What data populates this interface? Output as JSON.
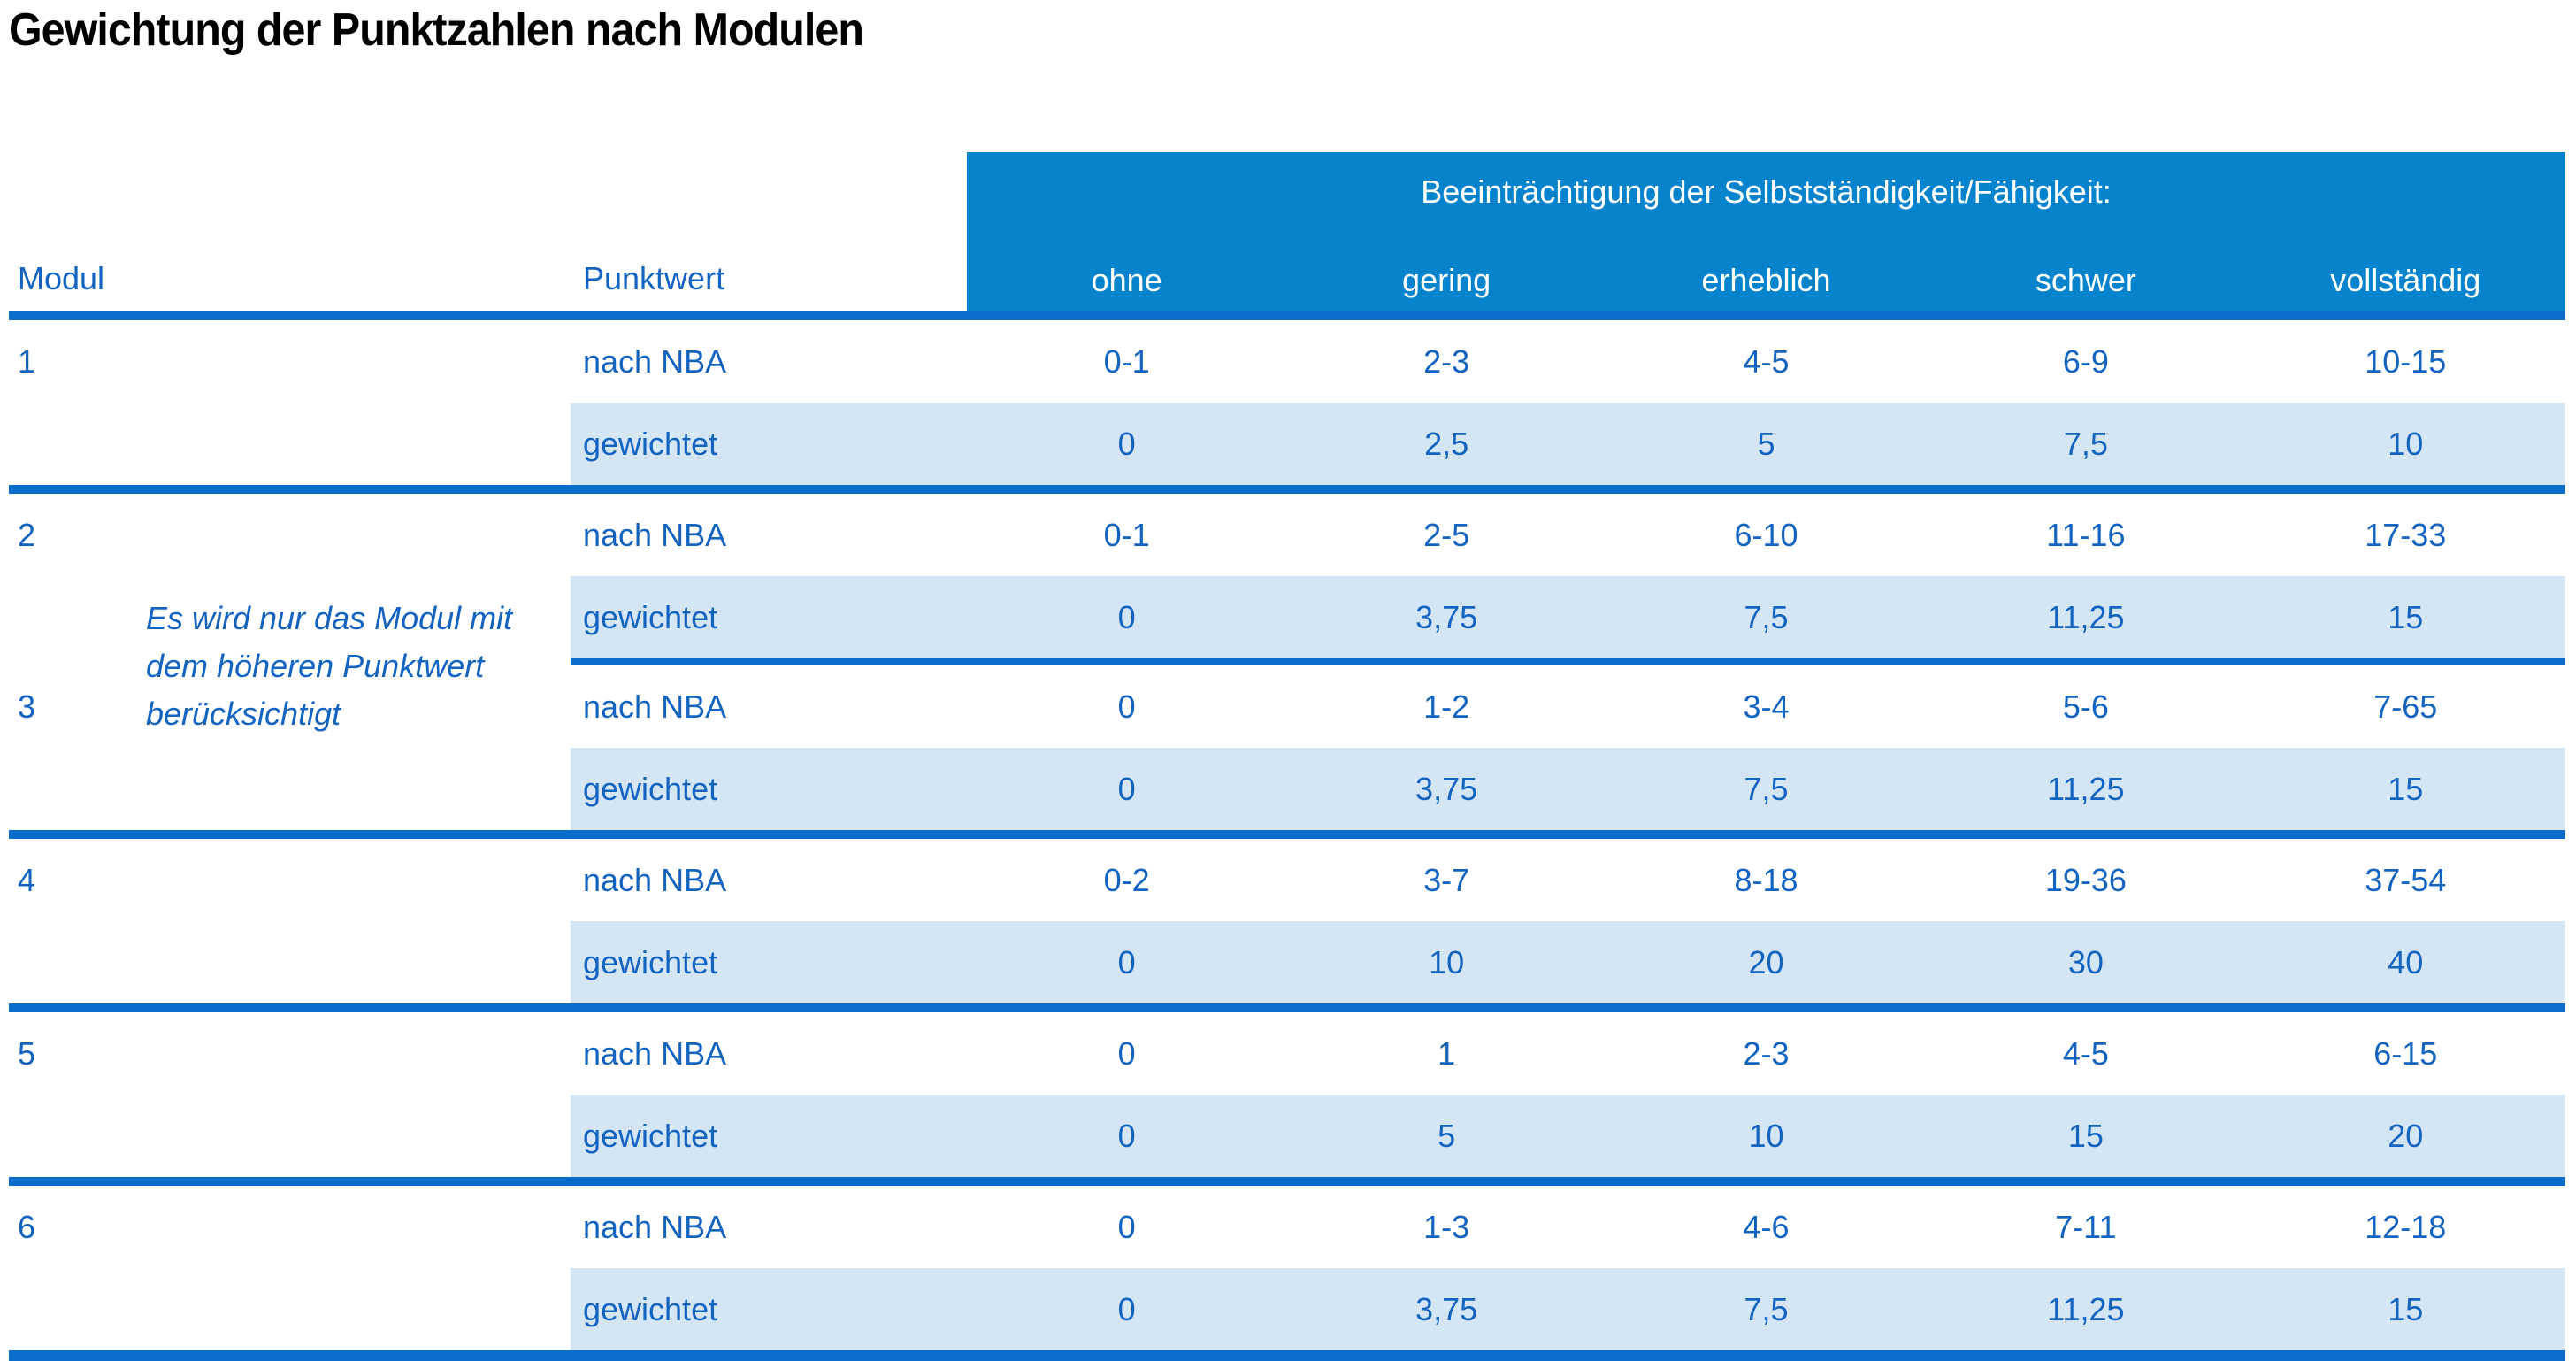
{
  "title": "Gewichtung der Punktzahlen nach Modulen",
  "labels": {
    "modul": "Modul",
    "punktwert": "Punktwert",
    "nba": "nach NBA",
    "weighted": "gewichtet"
  },
  "header": {
    "group": "Beeinträchtigung der Selbstständigkeit/Fähigkeit:",
    "levels": [
      "ohne",
      "gering",
      "erheblich",
      "schwer",
      "vollständig"
    ]
  },
  "note": "Es wird nur das Modul mit dem höheren Punktwert berücksichtigt",
  "modules": [
    {
      "id": "1",
      "nba": [
        "0-1",
        "2-3",
        "4-5",
        "6-9",
        "10-15"
      ],
      "weighted": [
        "0",
        "2,5",
        "5",
        "7,5",
        "10"
      ]
    },
    {
      "id": "2",
      "nba": [
        "0-1",
        "2-5",
        "6-10",
        "11-16",
        "17-33"
      ],
      "weighted": [
        "0",
        "3,75",
        "7,5",
        "11,25",
        "15"
      ]
    },
    {
      "id": "3",
      "nba": [
        "0",
        "1-2",
        "3-4",
        "5-6",
        "7-65"
      ],
      "weighted": [
        "0",
        "3,75",
        "7,5",
        "11,25",
        "15"
      ]
    },
    {
      "id": "4",
      "nba": [
        "0-2",
        "3-7",
        "8-18",
        "19-36",
        "37-54"
      ],
      "weighted": [
        "0",
        "10",
        "20",
        "30",
        "40"
      ]
    },
    {
      "id": "5",
      "nba": [
        "0",
        "1",
        "2-3",
        "4-5",
        "6-15"
      ],
      "weighted": [
        "0",
        "5",
        "10",
        "15",
        "20"
      ]
    },
    {
      "id": "6",
      "nba": [
        "0",
        "1-3",
        "4-6",
        "7-11",
        "12-18"
      ],
      "weighted": [
        "0",
        "3,75",
        "7,5",
        "11,25",
        "15"
      ]
    }
  ],
  "colors": {
    "header_bg": "#0583cd",
    "divider": "#0a6dc9",
    "text_blue": "#1363c0",
    "row_alt_bg": "#d4e5f4",
    "header_text": "#ffffff",
    "title_text": "#000000"
  }
}
